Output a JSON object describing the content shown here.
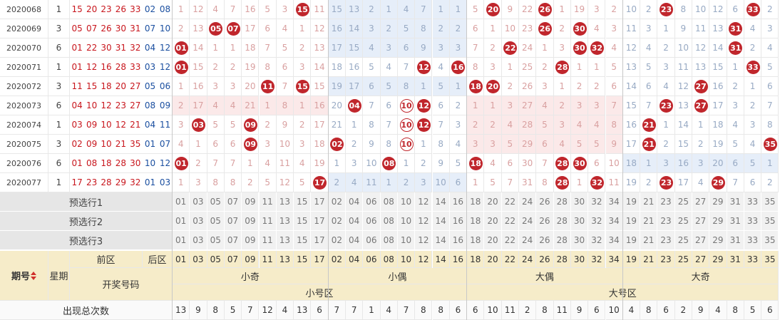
{
  "labels": {
    "period": "期号",
    "weekday": "星期",
    "front": "前区",
    "back": "后区",
    "draw": "开奖号码"
  },
  "zones": [
    {
      "label": "小号区",
      "groups": [
        {
          "label": "小奇",
          "miss_color": "#d9a0a0",
          "shade": "#fbe9e9",
          "numbers": [
            "01",
            "03",
            "05",
            "07",
            "09",
            "11",
            "13",
            "15",
            "17"
          ]
        },
        {
          "label": "小偶",
          "miss_color": "#98aac4",
          "shade": "#e6eef9",
          "numbers": [
            "02",
            "04",
            "06",
            "08",
            "10",
            "12",
            "14",
            "16"
          ]
        }
      ]
    },
    {
      "label": "大号区",
      "groups": [
        {
          "label": "大偶",
          "miss_color": "#d9a0a0",
          "shade": "#fbe9e9",
          "numbers": [
            "18",
            "20",
            "22",
            "24",
            "26",
            "28",
            "30",
            "32",
            "34"
          ]
        },
        {
          "label": "大奇",
          "miss_color": "#98aac4",
          "shade": "#e6eef9",
          "numbers": [
            "19",
            "21",
            "23",
            "25",
            "27",
            "29",
            "31",
            "33",
            "35"
          ]
        }
      ]
    }
  ],
  "rows": [
    {
      "period": "2020068",
      "weekday": "1",
      "front": [
        "15",
        "20",
        "23",
        "26",
        "33"
      ],
      "back": [
        "02",
        "08"
      ],
      "cells": [
        1,
        12,
        4,
        7,
        16,
        5,
        3,
        {
          "ball": "15"
        },
        11,
        15,
        13,
        2,
        1,
        4,
        7,
        1,
        1,
        5,
        {
          "ball": "20"
        },
        9,
        22,
        {
          "ball": "26"
        },
        1,
        19,
        3,
        2,
        10,
        2,
        {
          "ball": "23"
        },
        8,
        10,
        12,
        6,
        {
          "ball": "33"
        },
        2
      ]
    },
    {
      "period": "2020069",
      "weekday": "3",
      "front": [
        "05",
        "07",
        "26",
        "30",
        "31"
      ],
      "back": [
        "07",
        "10"
      ],
      "cells": [
        2,
        13,
        {
          "ball": "05"
        },
        {
          "ball": "07"
        },
        17,
        6,
        4,
        1,
        12,
        16,
        14,
        3,
        2,
        5,
        8,
        2,
        2,
        6,
        1,
        10,
        23,
        {
          "ball": "26"
        },
        2,
        {
          "ball": "30"
        },
        4,
        3,
        11,
        3,
        1,
        9,
        11,
        13,
        {
          "ball": "31"
        },
        4,
        3
      ]
    },
    {
      "period": "2020070",
      "weekday": "6",
      "front": [
        "01",
        "22",
        "30",
        "31",
        "32"
      ],
      "back": [
        "04",
        "12"
      ],
      "cells": [
        {
          "ball": "01"
        },
        14,
        1,
        1,
        18,
        7,
        5,
        2,
        13,
        17,
        15,
        4,
        3,
        6,
        9,
        3,
        3,
        7,
        2,
        {
          "ball": "22"
        },
        24,
        1,
        3,
        {
          "ball": "30"
        },
        {
          "ball": "32"
        },
        4,
        12,
        4,
        2,
        10,
        12,
        14,
        {
          "ball": "31"
        },
        2,
        4
      ]
    },
    {
      "period": "2020071",
      "weekday": "1",
      "front": [
        "01",
        "12",
        "16",
        "28",
        "33"
      ],
      "back": [
        "03",
        "12"
      ],
      "cells": [
        {
          "ball": "01"
        },
        15,
        2,
        2,
        19,
        8,
        6,
        3,
        14,
        18,
        16,
        5,
        4,
        7,
        {
          "ball": "12"
        },
        4,
        {
          "ball": "16"
        },
        8,
        3,
        1,
        25,
        2,
        {
          "ball": "28"
        },
        1,
        1,
        5,
        13,
        5,
        3,
        11,
        13,
        15,
        1,
        {
          "ball": "33"
        },
        5
      ]
    },
    {
      "period": "2020072",
      "weekday": "3",
      "front": [
        "11",
        "15",
        "18",
        "20",
        "27"
      ],
      "back": [
        "05",
        "06"
      ],
      "cells": [
        1,
        16,
        3,
        3,
        20,
        {
          "ball": "11"
        },
        7,
        {
          "ball": "15"
        },
        15,
        19,
        17,
        6,
        5,
        8,
        1,
        5,
        1,
        {
          "ball": "18"
        },
        {
          "ball": "20"
        },
        2,
        26,
        3,
        1,
        2,
        2,
        6,
        14,
        6,
        4,
        12,
        {
          "ball": "27"
        },
        16,
        2,
        1,
        6
      ]
    },
    {
      "period": "2020073",
      "weekday": "6",
      "front": [
        "04",
        "10",
        "12",
        "23",
        "27"
      ],
      "back": [
        "08",
        "09"
      ],
      "cells": [
        2,
        17,
        4,
        4,
        21,
        1,
        8,
        1,
        16,
        20,
        {
          "ball": "04"
        },
        7,
        6,
        {
          "ball": "10",
          "ring": true
        },
        {
          "ball": "12"
        },
        6,
        2,
        1,
        1,
        3,
        27,
        4,
        2,
        3,
        3,
        7,
        15,
        7,
        {
          "ball": "23"
        },
        13,
        {
          "ball": "27"
        },
        17,
        3,
        2,
        7
      ]
    },
    {
      "period": "2020074",
      "weekday": "1",
      "front": [
        "03",
        "09",
        "10",
        "12",
        "21"
      ],
      "back": [
        "04",
        "11"
      ],
      "cells": [
        3,
        {
          "ball": "03"
        },
        5,
        5,
        {
          "ball": "09"
        },
        2,
        9,
        2,
        17,
        21,
        1,
        8,
        7,
        {
          "ball": "10",
          "ring": true
        },
        {
          "ball": "12"
        },
        7,
        3,
        2,
        2,
        4,
        28,
        5,
        3,
        4,
        4,
        8,
        16,
        {
          "ball": "21"
        },
        1,
        14,
        1,
        18,
        4,
        3,
        8
      ]
    },
    {
      "period": "2020075",
      "weekday": "3",
      "front": [
        "02",
        "09",
        "10",
        "21",
        "35"
      ],
      "back": [
        "01",
        "07"
      ],
      "cells": [
        4,
        1,
        6,
        6,
        {
          "ball": "09"
        },
        3,
        10,
        3,
        18,
        {
          "ball": "02"
        },
        2,
        9,
        8,
        {
          "ball": "10",
          "ring": true
        },
        1,
        8,
        4,
        3,
        3,
        5,
        29,
        6,
        4,
        5,
        5,
        9,
        17,
        {
          "ball": "21"
        },
        2,
        15,
        2,
        19,
        5,
        4,
        {
          "ball": "35"
        }
      ]
    },
    {
      "period": "2020076",
      "weekday": "6",
      "front": [
        "01",
        "08",
        "18",
        "28",
        "30"
      ],
      "back": [
        "10",
        "12"
      ],
      "cells": [
        {
          "ball": "01"
        },
        2,
        7,
        7,
        1,
        4,
        11,
        4,
        19,
        1,
        3,
        10,
        {
          "ball": "08"
        },
        1,
        2,
        9,
        5,
        {
          "ball": "18"
        },
        4,
        6,
        30,
        7,
        {
          "ball": "28"
        },
        {
          "ball": "30"
        },
        6,
        10,
        18,
        1,
        3,
        16,
        3,
        20,
        6,
        5,
        1
      ]
    },
    {
      "period": "2020077",
      "weekday": "1",
      "front": [
        "17",
        "23",
        "28",
        "29",
        "32"
      ],
      "back": [
        "01",
        "03"
      ],
      "cells": [
        1,
        3,
        8,
        8,
        2,
        5,
        12,
        5,
        {
          "ball": "17"
        },
        2,
        4,
        11,
        1,
        2,
        3,
        10,
        6,
        1,
        5,
        7,
        31,
        8,
        {
          "ball": "28"
        },
        1,
        {
          "ball": "32"
        },
        11,
        19,
        2,
        {
          "ball": "23"
        },
        17,
        4,
        {
          "ball": "29"
        },
        7,
        6,
        2
      ]
    }
  ],
  "preselect": [
    {
      "label": "预选行1",
      "numbers": [
        "01",
        "03",
        "05",
        "07",
        "09",
        "11",
        "13",
        "15",
        "17",
        "02",
        "04",
        "06",
        "08",
        "10",
        "12",
        "14",
        "16",
        "18",
        "20",
        "22",
        "24",
        "26",
        "28",
        "30",
        "32",
        "34",
        "19",
        "21",
        "23",
        "25",
        "27",
        "29",
        "31",
        "33",
        "35"
      ]
    },
    {
      "label": "预选行2",
      "numbers": [
        "01",
        "03",
        "05",
        "07",
        "09",
        "11",
        "13",
        "15",
        "17",
        "02",
        "04",
        "06",
        "08",
        "10",
        "12",
        "14",
        "16",
        "18",
        "20",
        "22",
        "24",
        "26",
        "28",
        "30",
        "32",
        "34",
        "19",
        "21",
        "23",
        "25",
        "27",
        "29",
        "31",
        "33",
        "35"
      ]
    },
    {
      "label": "预选行3",
      "numbers": [
        "01",
        "03",
        "05",
        "07",
        "09",
        "11",
        "13",
        "15",
        "17",
        "02",
        "04",
        "06",
        "08",
        "10",
        "12",
        "14",
        "16",
        "18",
        "20",
        "22",
        "24",
        "26",
        "28",
        "30",
        "32",
        "34",
        "19",
        "21",
        "23",
        "25",
        "27",
        "29",
        "31",
        "33",
        "35"
      ]
    }
  ],
  "totals": {
    "label": "出现总次数",
    "values": [
      13,
      9,
      8,
      5,
      7,
      12,
      4,
      13,
      6,
      7,
      7,
      1,
      4,
      7,
      8,
      8,
      6,
      6,
      10,
      11,
      2,
      8,
      11,
      9,
      6,
      10,
      4,
      8,
      6,
      2,
      9,
      4,
      8,
      5,
      6
    ]
  }
}
